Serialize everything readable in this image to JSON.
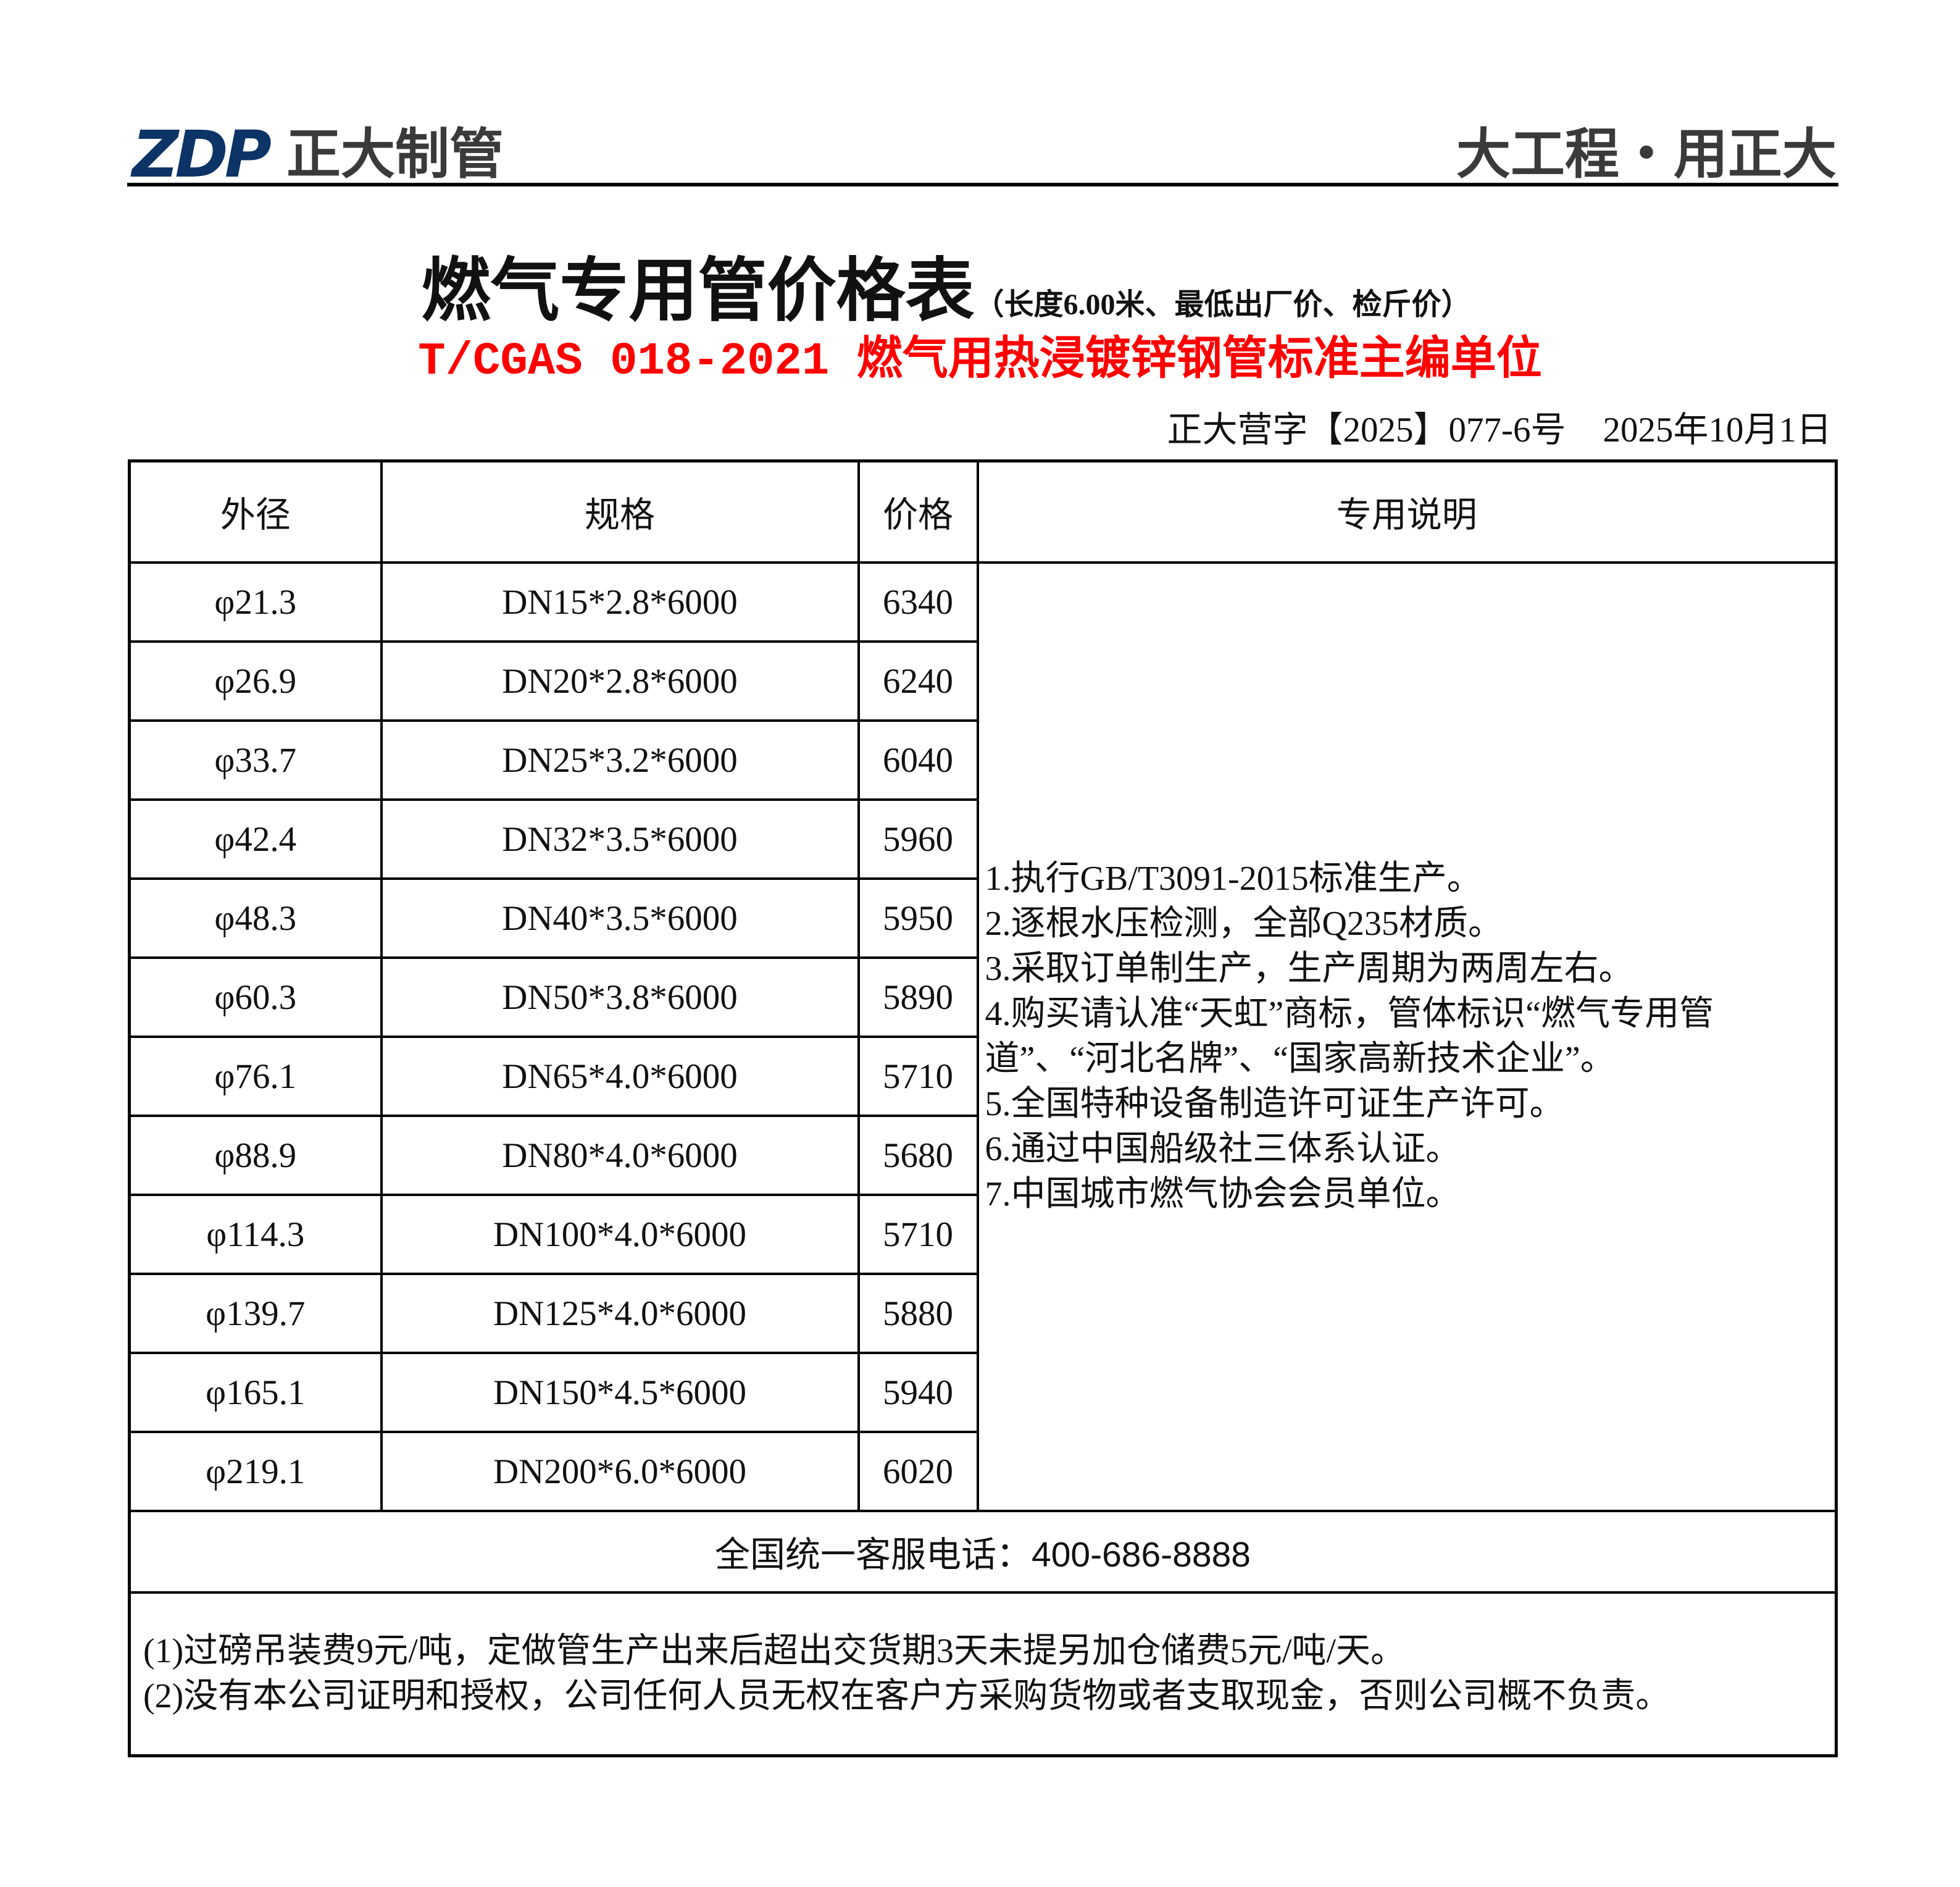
{
  "header": {
    "logo_mark": "ZDP",
    "logo_text": "正大制管",
    "slogan": "大工程・用正大",
    "brand_color": "#0d3467"
  },
  "title": "燃气专用管价格表",
  "title_note": "（长度6.00米、最低出厂价、检斤价）",
  "subtitle": "T/CGAS 018-2021 燃气用热浸镀锌钢管标准主编单位",
  "subtitle_color": "#ff0000",
  "doc_number": "正大营字【2025】077-6号",
  "date": "2025年10月1日",
  "table": {
    "headers": [
      "外径",
      "规格",
      "价格",
      "专用说明"
    ],
    "rows": [
      {
        "od": "φ21.3",
        "spec": "DN15*2.8*6000",
        "price": "6340"
      },
      {
        "od": "φ26.9",
        "spec": "DN20*2.8*6000",
        "price": "6240"
      },
      {
        "od": "φ33.7",
        "spec": "DN25*3.2*6000",
        "price": "6040"
      },
      {
        "od": "φ42.4",
        "spec": "DN32*3.5*6000",
        "price": "5960"
      },
      {
        "od": "φ48.3",
        "spec": "DN40*3.5*6000",
        "price": "5950"
      },
      {
        "od": "φ60.3",
        "spec": "DN50*3.8*6000",
        "price": "5890"
      },
      {
        "od": "φ76.1",
        "spec": "DN65*4.0*6000",
        "price": "5710"
      },
      {
        "od": "φ88.9",
        "spec": "DN80*4.0*6000",
        "price": "5680"
      },
      {
        "od": "φ114.3",
        "spec": "DN100*4.0*6000",
        "price": "5710"
      },
      {
        "od": "φ139.7",
        "spec": "DN125*4.0*6000",
        "price": "5880"
      },
      {
        "od": "φ165.1",
        "spec": "DN150*4.5*6000",
        "price": "5940"
      },
      {
        "od": "φ219.1",
        "spec": "DN200*6.0*6000",
        "price": "6020"
      }
    ],
    "notes": [
      "1.执行GB/T3091-2015标准生产。",
      "2.逐根水压检测，全部Q235材质。",
      "3.采取订单制生产，生产周期为两周左右。",
      "4.购买请认准“天虹”商标，管体标识“燃气专用管道”、“河北名牌”、“国家高新技术企业”。",
      "5.全国特种设备制造许可证生产许可。",
      "6.通过中国船级社三体系认证。",
      "7.中国城市燃气协会会员单位。"
    ],
    "phone_label": "全国统一客服电话：",
    "phone": "400-686-8888",
    "footnotes": [
      "(1)过磅吊装费9元/吨，定做管生产出来后超出交货期3天未提另加仓储费5元/吨/天。",
      "(2)没有本公司证明和授权，公司任何人员无权在客户方采购货物或者支取现金，否则公司概不负责。"
    ]
  }
}
